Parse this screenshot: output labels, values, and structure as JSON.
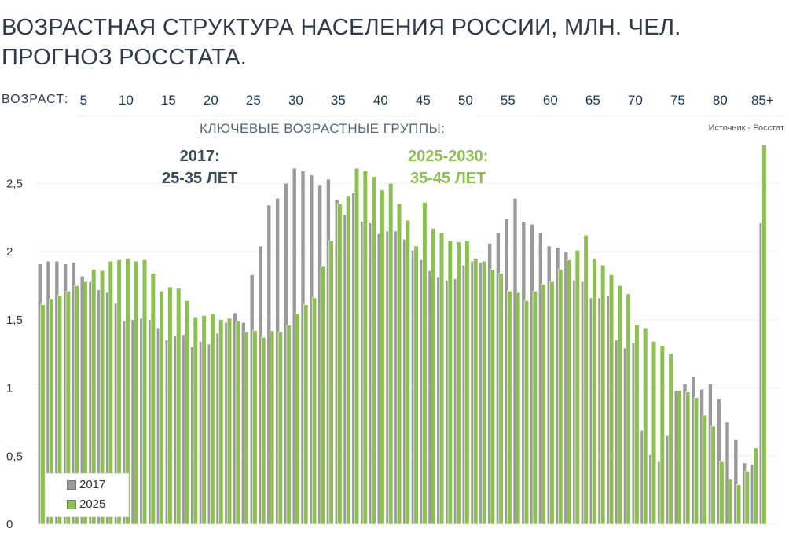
{
  "title": {
    "line1": "ВОЗРАСТНАЯ СТРУКТУРА НАСЕЛЕНИЯ РОССИИ, МЛН. ЧЕЛ.",
    "line2": "ПРОГНОЗ РОССТАТА."
  },
  "age_axis_label": "ВОЗРАСТ:",
  "key_groups_label": "КЛЮЧЕВЫЕ ВОЗРАСТНЫЕ ГРУППЫ:",
  "source": "Источник - Росстат",
  "annotations": {
    "a2017": {
      "line1": "2017:",
      "line2": "25-35 ЛЕТ"
    },
    "a2025": {
      "line1": "2025-2030:",
      "line2": "35-45 ЛЕТ"
    }
  },
  "colors": {
    "series_2017": "#9a9a9a",
    "series_2025": "#8cc152",
    "ann_2017": "#3a4a5a",
    "ann_2025": "#8cc152"
  },
  "chart_data": {
    "type": "bar",
    "title": "ВОЗРАСТНАЯ СТРУКТУРА НАСЕЛЕНИЯ РОССИИ, МЛН. ЧЕЛ.",
    "xlabel": "ВОЗРАСТ:",
    "ylabel": "",
    "ylim": [
      0,
      2.8
    ],
    "yticks": [
      0,
      0.5,
      1,
      1.5,
      2,
      2.5
    ],
    "ytick_labels": [
      "0",
      "0,5",
      "1",
      "1,5",
      "2",
      "2,5"
    ],
    "x_tick_labels": [
      "5",
      "10",
      "15",
      "20",
      "25",
      "30",
      "35",
      "40",
      "45",
      "50",
      "55",
      "60",
      "65",
      "70",
      "75",
      "80",
      "85+"
    ],
    "categories": [
      "0",
      "1",
      "2",
      "3",
      "4",
      "5",
      "6",
      "7",
      "8",
      "9",
      "10",
      "11",
      "12",
      "13",
      "14",
      "15",
      "16",
      "17",
      "18",
      "19",
      "20",
      "21",
      "22",
      "23",
      "24",
      "25",
      "26",
      "27",
      "28",
      "29",
      "30",
      "31",
      "32",
      "33",
      "34",
      "35",
      "36",
      "37",
      "38",
      "39",
      "40",
      "41",
      "42",
      "43",
      "44",
      "45",
      "46",
      "47",
      "48",
      "49",
      "50",
      "51",
      "52",
      "53",
      "54",
      "55",
      "56",
      "57",
      "58",
      "59",
      "60",
      "61",
      "62",
      "63",
      "64",
      "65",
      "66",
      "67",
      "68",
      "69",
      "70",
      "71",
      "72",
      "73",
      "74",
      "75",
      "76",
      "77",
      "78",
      "79",
      "80",
      "81",
      "82",
      "83",
      "84",
      "85+"
    ],
    "legend_position": "bottom-left",
    "series": [
      {
        "name": "2017",
        "values": [
          1.91,
          1.93,
          1.93,
          1.91,
          1.92,
          1.82,
          1.78,
          1.72,
          1.7,
          1.62,
          1.49,
          1.5,
          1.51,
          1.5,
          1.44,
          1.35,
          1.38,
          1.39,
          1.3,
          1.34,
          1.32,
          1.4,
          1.48,
          1.55,
          1.48,
          1.83,
          2.04,
          2.34,
          2.39,
          2.5,
          2.61,
          2.59,
          2.56,
          2.49,
          2.53,
          2.38,
          2.27,
          2.43,
          2.22,
          2.21,
          2.13,
          2.15,
          2.15,
          2.09,
          2.01,
          1.94,
          1.86,
          1.81,
          1.79,
          1.8,
          1.9,
          1.93,
          1.92,
          2.06,
          2.14,
          2.24,
          2.39,
          2.22,
          2.2,
          2.14,
          2.04,
          2.03,
          2.0,
          1.79,
          1.78,
          1.66,
          1.66,
          1.68,
          1.35,
          1.29,
          1.33,
          0.69,
          0.51,
          0.46,
          0.65,
          0.98,
          1.03,
          1.08,
          0.99,
          1.03,
          0.92,
          0.75,
          0.62,
          0.45,
          0.44,
          2.21
        ]
      },
      {
        "name": "2025",
        "values": [
          1.61,
          1.65,
          1.68,
          1.71,
          1.75,
          1.78,
          1.87,
          1.86,
          1.93,
          1.94,
          1.95,
          1.93,
          1.94,
          1.84,
          1.71,
          1.74,
          1.73,
          1.64,
          1.52,
          1.53,
          1.54,
          1.5,
          1.51,
          1.49,
          1.41,
          1.42,
          1.37,
          1.42,
          1.41,
          1.46,
          1.54,
          1.61,
          1.66,
          1.89,
          2.08,
          2.35,
          2.41,
          2.61,
          2.59,
          2.55,
          2.45,
          2.5,
          2.35,
          2.23,
          2.04,
          2.36,
          2.17,
          2.14,
          2.08,
          2.07,
          2.08,
          1.95,
          1.93,
          1.87,
          1.84,
          1.71,
          1.7,
          1.64,
          1.71,
          1.76,
          1.78,
          1.87,
          1.94,
          2.01,
          2.12,
          1.95,
          1.9,
          1.83,
          1.75,
          1.69,
          1.46,
          1.44,
          1.34,
          1.31,
          1.25,
          0.98,
          0.97,
          0.93,
          0.8,
          0.72,
          0.46,
          0.33,
          0.29,
          0.39,
          0.56,
          2.78
        ]
      }
    ]
  }
}
